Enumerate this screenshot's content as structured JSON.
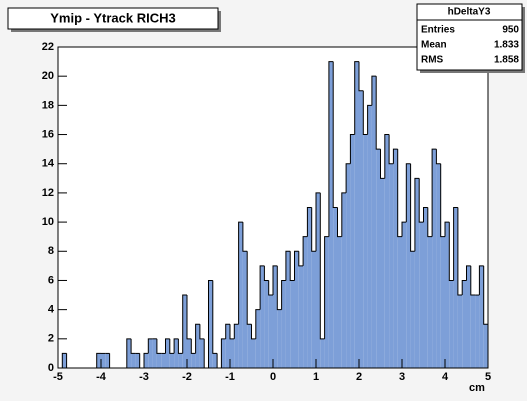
{
  "chart_data": {
    "type": "histogram",
    "title": "Ymip - Ytrack RICH3",
    "x_label": "cm",
    "stats": {
      "name": "hDeltaY3",
      "rows": [
        [
          "Entries",
          "950"
        ],
        [
          "Mean",
          "1.833"
        ],
        [
          "RMS",
          "1.858"
        ]
      ]
    },
    "color": "#7d9fd8",
    "bins": [
      -5,
      -4.9,
      -4.8,
      -4.7,
      -4.6,
      -4.5,
      -4.4,
      -4.3,
      -4.2,
      -4.1,
      -4,
      -3.9,
      -3.8,
      -3.7,
      -3.6,
      -3.5,
      -3.4,
      -3.3,
      -3.2,
      -3.1,
      -3,
      -2.9,
      -2.8,
      -2.7,
      -2.6,
      -2.5,
      -2.4,
      -2.3,
      -2.2,
      -2.1,
      -2,
      -1.9,
      -1.8,
      -1.7,
      -1.6,
      -1.5,
      -1.4,
      -1.3,
      -1.2,
      -1.1,
      -1,
      -0.9,
      -0.8,
      -0.7,
      -0.6,
      -0.5,
      -0.4,
      -0.3,
      -0.2,
      -0.1,
      0,
      0.1,
      0.2,
      0.3,
      0.4,
      0.5,
      0.6,
      0.7,
      0.8,
      0.9,
      1,
      1.1,
      1.2,
      1.3,
      1.4,
      1.5,
      1.6,
      1.7,
      1.8,
      1.9,
      2,
      2.1,
      2.2,
      2.3,
      2.4,
      2.5,
      2.6,
      2.7,
      2.8,
      2.9,
      3,
      3.1,
      3.2,
      3.3,
      3.4,
      3.5,
      3.6,
      3.7,
      3.8,
      3.9,
      4,
      4.1,
      4.2,
      4.3,
      4.4,
      4.5,
      4.6,
      4.7,
      4.8,
      4.9,
      5
    ],
    "counts": [
      0,
      1,
      0,
      0,
      0,
      0,
      0,
      0,
      0,
      1,
      1,
      1,
      0,
      0,
      0,
      0,
      2,
      1,
      1,
      0,
      1,
      2,
      2,
      1,
      1,
      2,
      1,
      2,
      1,
      5,
      2,
      1,
      3,
      2,
      0,
      6,
      1,
      0,
      2,
      3,
      2,
      3,
      10,
      8,
      3,
      2,
      4,
      7,
      6,
      5,
      7,
      4,
      6,
      8,
      6,
      8,
      7,
      9,
      11,
      8,
      12,
      2,
      9,
      21,
      11,
      9,
      12,
      14,
      16,
      21,
      19,
      16,
      18,
      20,
      15,
      13,
      16,
      14,
      15,
      9,
      10,
      14,
      8,
      13,
      10,
      11,
      9,
      15,
      14,
      9,
      10,
      6,
      11,
      5,
      6,
      7,
      5,
      5,
      7,
      3
    ],
    "xlim": [
      -5,
      5
    ],
    "ylim": [
      0,
      22
    ],
    "xticks": [
      -5,
      -4,
      -3,
      -2,
      -1,
      0,
      1,
      2,
      3,
      4,
      5
    ],
    "yticks": [
      0,
      2,
      4,
      6,
      8,
      10,
      12,
      14,
      16,
      18,
      20,
      22
    ]
  }
}
